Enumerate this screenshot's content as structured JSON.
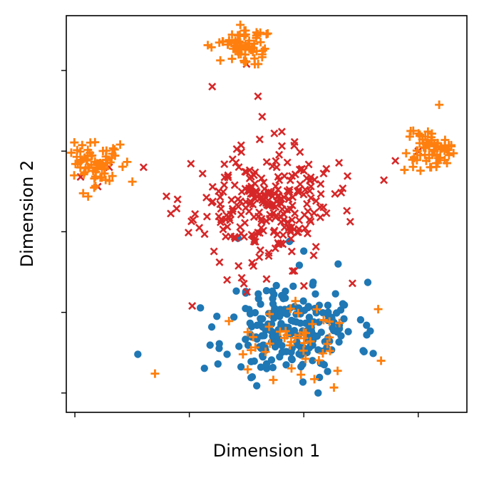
{
  "chart_data": {
    "type": "scatter",
    "title": "",
    "xlabel": "Dimension 1",
    "ylabel": "Dimension 2",
    "xlim": [
      -3.15,
      3.85
    ],
    "ylim": [
      -2.3,
      3.85
    ],
    "xticks": [
      -3,
      -1,
      1,
      3
    ],
    "yticks": [
      -2,
      -0.75,
      0.5,
      1.75,
      3
    ],
    "tick_labels_visible": false,
    "grid": false,
    "legend": "none",
    "series": [
      {
        "name": "blue-points",
        "marker": "circle",
        "color": "#1f77b4",
        "cluster": {
          "center": [
            0.8,
            -1.0
          ],
          "spread": [
            0.95,
            0.6
          ],
          "count": 220,
          "seed": 11
        },
        "points": [
          [
            -0.15,
            0.4
          ],
          [
            0.75,
            0.35
          ],
          [
            1.0,
            0.2
          ],
          [
            1.6,
            0.0
          ],
          [
            -0.5,
            -1.55
          ],
          [
            -1.9,
            -1.4
          ],
          [
            2.1,
            -1.1
          ],
          [
            1.25,
            -2.0
          ],
          [
            0.1,
            -1.75
          ]
        ]
      },
      {
        "name": "red-points",
        "marker": "x",
        "color": "#d62728",
        "cluster": {
          "center": [
            0.3,
            0.9
          ],
          "spread": [
            1.0,
            0.75
          ],
          "count": 260,
          "seed": 23
        },
        "points": [
          [
            -2.4,
            1.5
          ],
          [
            -2.6,
            1.2
          ],
          [
            -2.9,
            1.35
          ],
          [
            -1.4,
            1.05
          ],
          [
            -1.8,
            1.5
          ],
          [
            2.6,
            1.6
          ],
          [
            3.0,
            1.75
          ],
          [
            2.4,
            1.3
          ],
          [
            0.2,
            2.6
          ],
          [
            -0.6,
            2.75
          ],
          [
            0.0,
            3.1
          ],
          [
            -0.95,
            -0.65
          ],
          [
            1.85,
            -0.3
          ]
        ]
      },
      {
        "name": "orange-points",
        "marker": "plus",
        "color": "#ff7f0e",
        "cluster": {
          "center": [
            0.0,
            3.4
          ],
          "spread": [
            0.35,
            0.22
          ],
          "count": 70,
          "seed": 5
        },
        "extra_clusters": [
          {
            "center": [
              -2.65,
              1.55
            ],
            "spread": [
              0.35,
              0.3
            ],
            "count": 75,
            "seed": 7
          },
          {
            "center": [
              3.2,
              1.75
            ],
            "spread": [
              0.35,
              0.3
            ],
            "count": 70,
            "seed": 9
          },
          {
            "center": [
              0.8,
              -1.2
            ],
            "spread": [
              0.8,
              0.5
            ],
            "count": 45,
            "seed": 13
          }
        ],
        "points": [
          [
            2.3,
            -0.7
          ],
          [
            -1.6,
            -1.7
          ],
          [
            2.35,
            -1.5
          ]
        ]
      }
    ]
  }
}
